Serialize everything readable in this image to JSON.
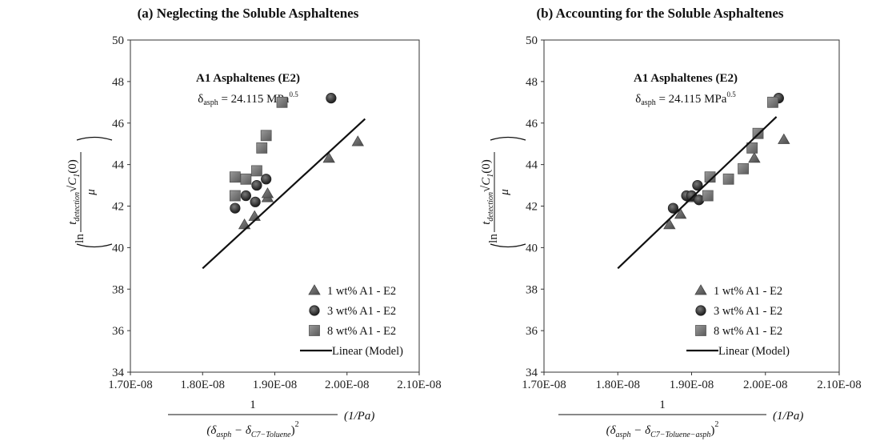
{
  "chart_data": [
    {
      "type": "scatter",
      "title": "(a) Neglecting the Soluble Asphaltenes",
      "annotation_title": "A1 Asphaltenes (E2)",
      "annotation_delta_prefix": "δ",
      "annotation_delta_sub": "asph",
      "annotation_delta_value": " = 24.115 MPa",
      "annotation_delta_sup": "0.5",
      "xlim": [
        1.7e-08,
        2.1e-08
      ],
      "ylim": [
        34,
        50
      ],
      "xticks": [
        "1.70E-08",
        "1.80E-08",
        "1.90E-08",
        "2.00E-08",
        "2.10E-08"
      ],
      "yticks": [
        "34",
        "36",
        "38",
        "40",
        "42",
        "44",
        "46",
        "48",
        "50"
      ],
      "ylabel": {
        "prefix": "ln",
        "numerator": "t",
        "numerator_sub": "detection",
        "root": "C",
        "root_sub": "1",
        "root_arg": "(0)",
        "denominator": "μ"
      },
      "xlabel": {
        "numerator": "1",
        "denominator": "(δ",
        "denom_sub1": "asph",
        "minus": " − δ",
        "denom_sub2": "C7−Toluene",
        "close": ")",
        "exp": "2",
        "unit": "(1/Pa)"
      },
      "legend_position": "bottom-right",
      "series": [
        {
          "name": "1 wt% A1 - E2",
          "marker": "triangle",
          "x": [
            1.858e-08,
            1.872e-08,
            1.89e-08,
            1.89e-08,
            1.975e-08,
            2.015e-08
          ],
          "y": [
            41.1,
            41.5,
            42.4,
            42.6,
            44.3,
            45.1
          ]
        },
        {
          "name": "3 wt% A1 - E2",
          "marker": "circle",
          "x": [
            1.845e-08,
            1.86e-08,
            1.873e-08,
            1.875e-08,
            1.888e-08,
            1.978e-08
          ],
          "y": [
            41.9,
            42.5,
            42.2,
            43.0,
            43.3,
            47.2
          ]
        },
        {
          "name": "8 wt% A1 - E2",
          "marker": "square",
          "x": [
            1.845e-08,
            1.845e-08,
            1.86e-08,
            1.875e-08,
            1.882e-08,
            1.888e-08,
            1.91e-08
          ],
          "y": [
            42.5,
            43.4,
            43.3,
            43.7,
            44.8,
            45.4,
            47.0
          ]
        },
        {
          "name": "Linear (Model)",
          "marker": "line",
          "x": [
            1.8e-08,
            2.025e-08
          ],
          "y": [
            39.0,
            46.2
          ]
        }
      ]
    },
    {
      "type": "scatter",
      "title": "(b) Accounting for the Soluble Asphaltenes",
      "annotation_title": "A1 Asphaltenes (E2)",
      "annotation_delta_prefix": "δ",
      "annotation_delta_sub": "asph",
      "annotation_delta_value": " = 24.115 MPa",
      "annotation_delta_sup": "0.5",
      "xlim": [
        1.7e-08,
        2.1e-08
      ],
      "ylim": [
        34,
        50
      ],
      "xticks": [
        "1.70E-08",
        "1.80E-08",
        "1.90E-08",
        "2.00E-08",
        "2.10E-08"
      ],
      "yticks": [
        "34",
        "36",
        "38",
        "40",
        "42",
        "44",
        "46",
        "48",
        "50"
      ],
      "ylabel": {
        "prefix": "ln",
        "numerator": "t",
        "numerator_sub": "detection",
        "root": "C",
        "root_sub": "1",
        "root_arg": "(0)",
        "denominator": "μ"
      },
      "xlabel": {
        "numerator": "1",
        "denominator": "(δ",
        "denom_sub1": "asph",
        "minus": " − δ",
        "denom_sub2": "C7−Toluene−asph",
        "close": ")",
        "exp": "2",
        "unit": "(1/Pa)"
      },
      "legend_position": "bottom-right",
      "series": [
        {
          "name": "1 wt% A1 - E2",
          "marker": "triangle",
          "x": [
            1.87e-08,
            1.885e-08,
            1.9e-08,
            1.985e-08,
            2.025e-08
          ],
          "y": [
            41.1,
            41.6,
            42.4,
            44.3,
            45.2
          ]
        },
        {
          "name": "3 wt% A1 - E2",
          "marker": "circle",
          "x": [
            1.875e-08,
            1.893e-08,
            1.9e-08,
            1.91e-08,
            1.908e-08,
            2.018e-08
          ],
          "y": [
            41.9,
            42.5,
            42.5,
            42.3,
            43.0,
            47.2
          ]
        },
        {
          "name": "8 wt% A1 - E2",
          "marker": "square",
          "x": [
            1.922e-08,
            1.925e-08,
            1.95e-08,
            1.97e-08,
            1.982e-08,
            1.99e-08,
            2.01e-08
          ],
          "y": [
            42.5,
            43.4,
            43.3,
            43.8,
            44.8,
            45.5,
            47.0
          ]
        },
        {
          "name": "Linear (Model)",
          "marker": "line",
          "x": [
            1.8e-08,
            2.015e-08
          ],
          "y": [
            39.0,
            46.3
          ]
        }
      ]
    }
  ]
}
